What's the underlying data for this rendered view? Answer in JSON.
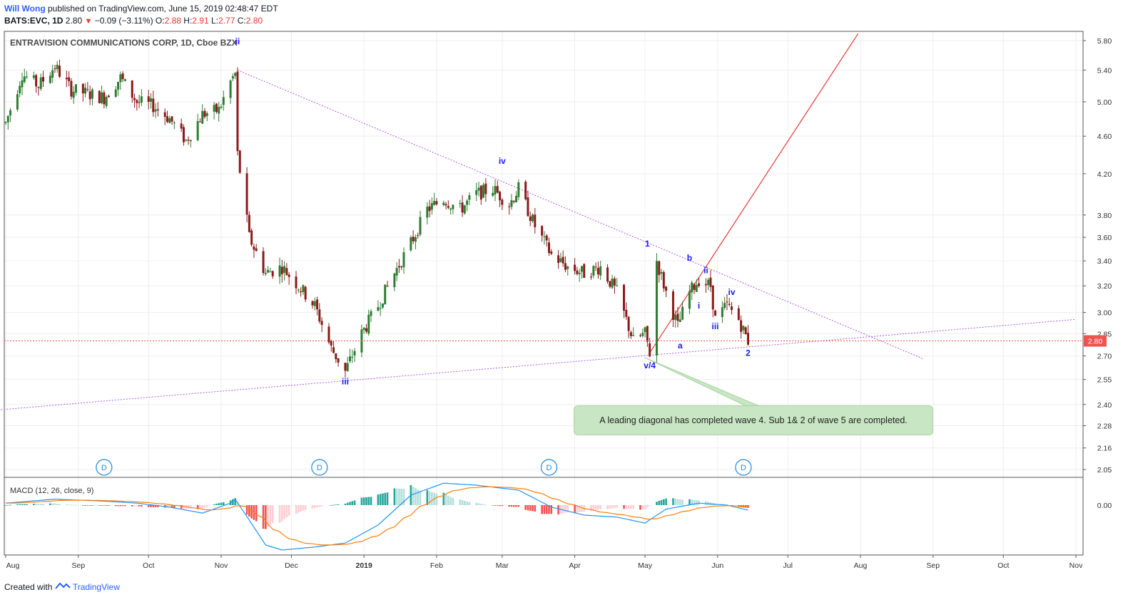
{
  "header": {
    "author": "Will Wong",
    "published": "published on TradingView.com, June 15, 2019 02:48:47 EDT",
    "symbol_line": "BATS:EVC, 1D",
    "last": "2.80",
    "change": "−0.09 (−3.11%)",
    "o_label": "O:",
    "o": "2.88",
    "h_label": "H:",
    "h": "2.91",
    "l_label": "L:",
    "l": "2.77",
    "c_label": "C:",
    "c": "2.80"
  },
  "chart_title": "ENTRAVISION COMMUNICATIONS CORP, 1D, Cboe BZX",
  "macd_title": "MACD (12, 26, close, 9)",
  "note_text": "A leading diagonal has completed wave 4. Sub 1& 2 of wave 5 are completed.",
  "footer": {
    "created_with": "Created with",
    "brand": "TradingView"
  },
  "colors": {
    "up": "#26a69a",
    "down": "#ef5350",
    "candle_up": "#2e7d32",
    "candle_down": "#8b1a1a",
    "trend_purple": "#b05ce8",
    "red_line": "#e53935",
    "macd": "#2196f3",
    "signal": "#ff7f0e"
  },
  "chart_data": {
    "type": "candlestick",
    "price_axis": {
      "ticks": [
        5.8,
        5.4,
        5.0,
        4.6,
        4.2,
        3.8,
        3.6,
        3.4,
        3.2,
        3.0,
        2.85,
        2.7,
        2.55,
        2.4,
        2.28,
        2.16,
        2.05
      ],
      "tick_labels": [
        "5.80",
        "5.40",
        "5.00",
        "4.60",
        "4.20",
        "3.80",
        "3.60",
        "3.40",
        "3.20",
        "3.00",
        "2.85",
        "2.70",
        "2.55",
        "2.40",
        "2.28",
        "2.16",
        "2.05"
      ],
      "last_price": 2.8,
      "last_price_label": "2.80",
      "scale": "log"
    },
    "time_axis": {
      "labels": [
        "Aug",
        "Sep",
        "Oct",
        "Nov",
        "Dec",
        "2019",
        "Feb",
        "Mar",
        "Apr",
        "May",
        "Jun",
        "Jul",
        "Aug",
        "Sep",
        "Oct",
        "Nov"
      ],
      "month_start_dates": [
        "2018-08-01",
        "2018-09-01",
        "2018-10-01",
        "2018-11-01",
        "2018-12-01",
        "2019-01-01",
        "2019-02-01",
        "2019-03-01",
        "2019-04-01",
        "2019-05-01",
        "2019-06-01",
        "2019-07-01",
        "2019-08-01",
        "2019-09-01",
        "2019-10-01",
        "2019-11-01"
      ]
    },
    "price_path": [
      [
        "2018-08-01",
        4.75
      ],
      [
        "2018-08-08",
        5.35
      ],
      [
        "2018-08-15",
        5.2
      ],
      [
        "2018-08-22",
        5.45
      ],
      [
        "2018-08-29",
        5.15
      ],
      [
        "2018-09-05",
        5.1
      ],
      [
        "2018-09-12",
        5.05
      ],
      [
        "2018-09-19",
        5.3
      ],
      [
        "2018-09-26",
        5.0
      ],
      [
        "2018-10-03",
        4.95
      ],
      [
        "2018-10-10",
        4.8
      ],
      [
        "2018-10-17",
        4.55
      ],
      [
        "2018-10-24",
        4.85
      ],
      [
        "2018-10-31",
        4.9
      ],
      [
        "2018-11-05",
        5.25
      ],
      [
        "2018-11-07",
        5.35
      ],
      [
        "2018-11-08",
        4.4
      ],
      [
        "2018-11-13",
        3.6
      ],
      [
        "2018-11-20",
        3.3
      ],
      [
        "2018-11-27",
        3.35
      ],
      [
        "2018-12-04",
        3.2
      ],
      [
        "2018-12-11",
        3.05
      ],
      [
        "2018-12-18",
        2.75
      ],
      [
        "2018-12-24",
        2.6
      ],
      [
        "2018-12-31",
        2.85
      ],
      [
        "2019-01-07",
        3.05
      ],
      [
        "2019-01-14",
        3.3
      ],
      [
        "2019-01-21",
        3.55
      ],
      [
        "2019-01-28",
        3.85
      ],
      [
        "2019-02-04",
        3.95
      ],
      [
        "2019-02-11",
        3.85
      ],
      [
        "2019-02-18",
        4.0
      ],
      [
        "2019-02-25",
        4.05
      ],
      [
        "2019-03-04",
        3.9
      ],
      [
        "2019-03-08",
        4.05
      ],
      [
        "2019-03-15",
        3.7
      ],
      [
        "2019-03-22",
        3.45
      ],
      [
        "2019-03-29",
        3.35
      ],
      [
        "2019-04-05",
        3.3
      ],
      [
        "2019-04-12",
        3.35
      ],
      [
        "2019-04-19",
        3.15
      ],
      [
        "2019-04-26",
        2.8
      ],
      [
        "2019-05-01",
        2.85
      ],
      [
        "2019-05-03",
        2.72
      ],
      [
        "2019-05-06",
        3.4
      ],
      [
        "2019-05-10",
        3.15
      ],
      [
        "2019-05-15",
        2.9
      ],
      [
        "2019-05-20",
        3.15
      ],
      [
        "2019-05-24",
        3.25
      ],
      [
        "2019-05-29",
        3.2
      ],
      [
        "2019-05-31",
        2.95
      ],
      [
        "2019-06-05",
        3.05
      ],
      [
        "2019-06-10",
        2.95
      ],
      [
        "2019-06-14",
        2.8
      ]
    ],
    "trendlines": [
      {
        "name": "upper",
        "from": [
          "2018-11-08",
          5.4
        ],
        "to": [
          "2019-08-28",
          2.68
        ]
      },
      {
        "name": "lower",
        "from": [
          "2018-07-30",
          2.37
        ],
        "to": [
          "2019-11-01",
          2.95
        ]
      },
      {
        "name": "red",
        "from": [
          "2019-05-03",
          2.72
        ],
        "to": [
          "2019-07-31",
          5.9
        ]
      }
    ],
    "wave_labels": [
      {
        "text": "ii",
        "date": "2018-11-08",
        "price": 5.75
      },
      {
        "text": "iv",
        "date": "2019-03-01",
        "price": 4.3
      },
      {
        "text": "iii",
        "date": "2018-12-24",
        "price": 2.52
      },
      {
        "text": "1",
        "date": "2019-05-02",
        "price": 3.52
      },
      {
        "text": "v/4",
        "date": "2019-05-03",
        "price": 2.62
      },
      {
        "text": "a",
        "date": "2019-05-16",
        "price": 2.75
      },
      {
        "text": "b",
        "date": "2019-05-20",
        "price": 3.4
      },
      {
        "text": "i",
        "date": "2019-05-24",
        "price": 3.03
      },
      {
        "text": "ii",
        "date": "2019-05-27",
        "price": 3.3
      },
      {
        "text": "iii",
        "date": "2019-05-31",
        "price": 2.88
      },
      {
        "text": "iv",
        "date": "2019-06-07",
        "price": 3.13
      },
      {
        "text": "2",
        "date": "2019-06-14",
        "price": 2.7
      }
    ],
    "dividend_markers": {
      "label": "D",
      "dates": [
        "2018-09-12",
        "2018-12-13",
        "2019-03-21",
        "2019-06-12"
      ]
    },
    "macd": {
      "zero_label": "0.00",
      "path": [
        [
          "2018-08-01",
          0.02
        ],
        [
          "2018-08-22",
          0.06
        ],
        [
          "2018-09-12",
          0.04
        ],
        [
          "2018-09-26",
          0.02
        ],
        [
          "2018-10-10",
          -0.02
        ],
        [
          "2018-10-24",
          -0.08
        ],
        [
          "2018-11-05",
          0.02
        ],
        [
          "2018-11-07",
          0.06
        ],
        [
          "2018-11-13",
          -0.15
        ],
        [
          "2018-11-20",
          -0.4
        ],
        [
          "2018-11-27",
          -0.45
        ],
        [
          "2018-12-11",
          -0.42
        ],
        [
          "2018-12-24",
          -0.38
        ],
        [
          "2019-01-07",
          -0.2
        ],
        [
          "2019-01-21",
          0.1
        ],
        [
          "2019-02-04",
          0.22
        ],
        [
          "2019-02-18",
          0.2
        ],
        [
          "2019-03-08",
          0.15
        ],
        [
          "2019-03-22",
          -0.02
        ],
        [
          "2019-04-05",
          -0.1
        ],
        [
          "2019-04-19",
          -0.12
        ],
        [
          "2019-05-01",
          -0.18
        ],
        [
          "2019-05-10",
          -0.04
        ],
        [
          "2019-05-24",
          0.02
        ],
        [
          "2019-06-05",
          0.0
        ],
        [
          "2019-06-14",
          -0.05
        ]
      ]
    }
  }
}
